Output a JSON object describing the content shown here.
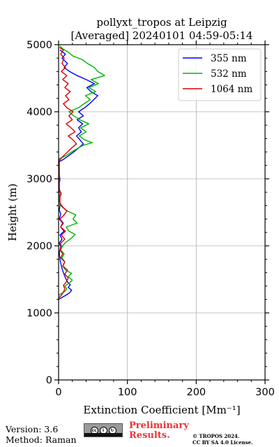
{
  "chart_data": {
    "type": "line",
    "orientation": "vertical-profile",
    "title": [
      "pollyxt_tropos at Leipzig",
      "[Averaged] 20240101 04:59-05:14"
    ],
    "xlabel": "Extinction Coefficient [Mm⁻¹]",
    "ylabel": "Height (m)",
    "xlim": [
      0,
      300
    ],
    "ylim": [
      0,
      5000
    ],
    "x_ticks": [
      0,
      100,
      200,
      300
    ],
    "y_ticks": [
      0,
      1000,
      2000,
      3000,
      4000,
      5000
    ],
    "grid": true,
    "legend_position": "top-right",
    "series": [
      {
        "name": "355 nm",
        "color": "#0000ff",
        "points": [
          [
            0,
            1200
          ],
          [
            5,
            1230
          ],
          [
            10,
            1260
          ],
          [
            16,
            1300
          ],
          [
            19,
            1340
          ],
          [
            14,
            1380
          ],
          [
            17,
            1420
          ],
          [
            13,
            1460
          ],
          [
            10,
            1520
          ],
          [
            7,
            1600
          ],
          [
            4,
            1700
          ],
          [
            2,
            1800
          ],
          [
            1,
            1900
          ],
          [
            3,
            1990
          ],
          [
            1,
            2040
          ],
          [
            5,
            2100
          ],
          [
            2,
            2160
          ],
          [
            8,
            2220
          ],
          [
            3,
            2280
          ],
          [
            6,
            2340
          ],
          [
            1,
            2400
          ],
          [
            3,
            2470
          ],
          [
            1,
            2540
          ],
          [
            2,
            2600
          ],
          [
            1,
            2700
          ],
          [
            2,
            2760
          ],
          [
            1,
            2820
          ],
          [
            1,
            2930
          ],
          [
            2,
            2990
          ],
          [
            1,
            3060
          ],
          [
            0,
            3250
          ],
          [
            7,
            3290
          ],
          [
            14,
            3340
          ],
          [
            22,
            3400
          ],
          [
            29,
            3460
          ],
          [
            36,
            3520
          ],
          [
            31,
            3580
          ],
          [
            26,
            3640
          ],
          [
            33,
            3700
          ],
          [
            29,
            3760
          ],
          [
            35,
            3820
          ],
          [
            27,
            3880
          ],
          [
            36,
            3940
          ],
          [
            29,
            4000
          ],
          [
            38,
            4060
          ],
          [
            45,
            4120
          ],
          [
            51,
            4180
          ],
          [
            57,
            4240
          ],
          [
            47,
            4300
          ],
          [
            41,
            4360
          ],
          [
            52,
            4420
          ],
          [
            40,
            4480
          ],
          [
            27,
            4540
          ],
          [
            16,
            4600
          ],
          [
            8,
            4660
          ],
          [
            13,
            4720
          ],
          [
            5,
            4800
          ],
          [
            10,
            4860
          ],
          [
            2,
            4920
          ]
        ]
      },
      {
        "name": "532 nm",
        "color": "#00b400",
        "points": [
          [
            0,
            1260
          ],
          [
            4,
            1290
          ],
          [
            9,
            1320
          ],
          [
            12,
            1360
          ],
          [
            9,
            1400
          ],
          [
            15,
            1440
          ],
          [
            20,
            1490
          ],
          [
            14,
            1540
          ],
          [
            19,
            1590
          ],
          [
            10,
            1640
          ],
          [
            6,
            1700
          ],
          [
            9,
            1760
          ],
          [
            5,
            1820
          ],
          [
            8,
            1880
          ],
          [
            3,
            1940
          ],
          [
            6,
            2000
          ],
          [
            10,
            2050
          ],
          [
            18,
            2110
          ],
          [
            24,
            2170
          ],
          [
            15,
            2220
          ],
          [
            11,
            2280
          ],
          [
            27,
            2340
          ],
          [
            21,
            2400
          ],
          [
            25,
            2460
          ],
          [
            13,
            2520
          ],
          [
            5,
            2580
          ],
          [
            2,
            2620
          ],
          [
            1,
            2740
          ],
          [
            2,
            2800
          ],
          [
            1,
            2860
          ],
          [
            1,
            3300
          ],
          [
            10,
            3340
          ],
          [
            19,
            3400
          ],
          [
            27,
            3450
          ],
          [
            36,
            3500
          ],
          [
            49,
            3540
          ],
          [
            38,
            3580
          ],
          [
            30,
            3640
          ],
          [
            40,
            3700
          ],
          [
            32,
            3760
          ],
          [
            44,
            3820
          ],
          [
            31,
            3880
          ],
          [
            22,
            3940
          ],
          [
            15,
            4000
          ],
          [
            29,
            4060
          ],
          [
            37,
            4120
          ],
          [
            46,
            4180
          ],
          [
            39,
            4240
          ],
          [
            54,
            4300
          ],
          [
            44,
            4360
          ],
          [
            58,
            4420
          ],
          [
            47,
            4480
          ],
          [
            67,
            4540
          ],
          [
            57,
            4600
          ],
          [
            52,
            4660
          ],
          [
            42,
            4720
          ],
          [
            34,
            4780
          ],
          [
            21,
            4830
          ],
          [
            15,
            4880
          ],
          [
            6,
            4940
          ],
          [
            2,
            4980
          ]
        ]
      },
      {
        "name": "1064 nm",
        "color": "#dd0000",
        "points": [
          [
            0,
            1220
          ],
          [
            4,
            1260
          ],
          [
            7,
            1310
          ],
          [
            9,
            1360
          ],
          [
            7,
            1410
          ],
          [
            11,
            1460
          ],
          [
            14,
            1520
          ],
          [
            9,
            1580
          ],
          [
            13,
            1640
          ],
          [
            6,
            1700
          ],
          [
            9,
            1760
          ],
          [
            3,
            1820
          ],
          [
            6,
            1880
          ],
          [
            2,
            1940
          ],
          [
            4,
            2000
          ],
          [
            3,
            2040
          ],
          [
            9,
            2100
          ],
          [
            4,
            2160
          ],
          [
            10,
            2220
          ],
          [
            3,
            2280
          ],
          [
            7,
            2340
          ],
          [
            2,
            2400
          ],
          [
            8,
            2460
          ],
          [
            12,
            2520
          ],
          [
            6,
            2580
          ],
          [
            2,
            2640
          ],
          [
            2,
            2730
          ],
          [
            4,
            2780
          ],
          [
            1,
            2840
          ],
          [
            1,
            3270
          ],
          [
            6,
            3330
          ],
          [
            13,
            3400
          ],
          [
            19,
            3460
          ],
          [
            26,
            3520
          ],
          [
            21,
            3580
          ],
          [
            14,
            3640
          ],
          [
            24,
            3700
          ],
          [
            18,
            3760
          ],
          [
            11,
            3820
          ],
          [
            20,
            3880
          ],
          [
            15,
            3940
          ],
          [
            21,
            4000
          ],
          [
            12,
            4060
          ],
          [
            7,
            4120
          ],
          [
            15,
            4180
          ],
          [
            10,
            4240
          ],
          [
            17,
            4300
          ],
          [
            9,
            4360
          ],
          [
            14,
            4420
          ],
          [
            6,
            4480
          ],
          [
            12,
            4540
          ],
          [
            4,
            4600
          ],
          [
            10,
            4660
          ],
          [
            5,
            4720
          ],
          [
            8,
            4800
          ],
          [
            3,
            4860
          ],
          [
            7,
            4920
          ],
          [
            1,
            4960
          ]
        ]
      }
    ]
  },
  "footer": {
    "version": "Version: 3.6",
    "method": "Method: Raman",
    "preliminary": [
      "Preliminary",
      "Results."
    ],
    "copyright": [
      "© TROPOS 2024.",
      "CC BY SA 4.0 License."
    ],
    "license_badge_icon": "cc-by-sa-badge-icon"
  }
}
